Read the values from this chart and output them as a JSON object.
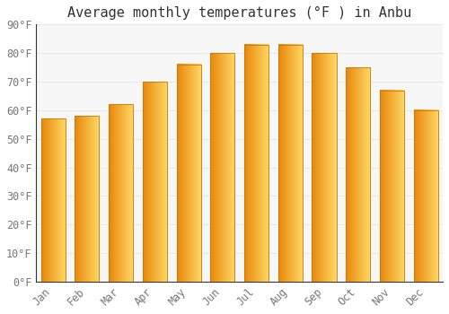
{
  "title": "Average monthly temperatures (°F ) in Anbu",
  "months": [
    "Jan",
    "Feb",
    "Mar",
    "Apr",
    "May",
    "Jun",
    "Jul",
    "Aug",
    "Sep",
    "Oct",
    "Nov",
    "Dec"
  ],
  "values": [
    57,
    58,
    62,
    70,
    76,
    80,
    83,
    83,
    80,
    75,
    67,
    60
  ],
  "bar_color_main": "#FFBB33",
  "bar_color_left": "#E8870A",
  "bar_color_right": "#FFD966",
  "background_color": "#ffffff",
  "plot_bg_color": "#f7f7f7",
  "grid_color": "#e8e8e8",
  "ylim": [
    0,
    90
  ],
  "yticks": [
    0,
    10,
    20,
    30,
    40,
    50,
    60,
    70,
    80,
    90
  ],
  "title_fontsize": 11,
  "tick_fontsize": 8.5,
  "font_family": "monospace",
  "bar_width": 0.72
}
